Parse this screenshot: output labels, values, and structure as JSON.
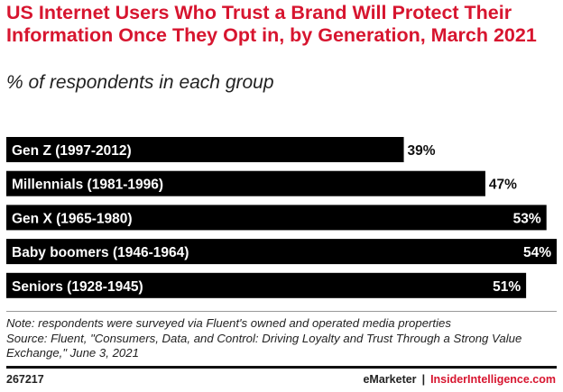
{
  "chart_data": {
    "type": "bar",
    "orientation": "horizontal",
    "title": "US Internet Users Who Trust a Brand Will Protect Their Information Once They Opt in, by Generation, March 2021",
    "subtitle": "% of respondents in each group",
    "categories": [
      "Gen Z (1997-2012)",
      "Millennials (1981-1996)",
      "Gen X (1965-1980)",
      "Baby boomers (1946-1964)",
      "Seniors (1928-1945)"
    ],
    "values": [
      39,
      47,
      53,
      54,
      51
    ],
    "value_labels": [
      "39%",
      "47%",
      "53%",
      "54%",
      "51%"
    ],
    "xlim": [
      0,
      54
    ],
    "grid": false,
    "bar_color": "#000000",
    "title_color": "#d7152f"
  },
  "footer": {
    "note": "Note: respondents were surveyed via Fluent's owned and operated media properties",
    "source": "Source: Fluent, \"Consumers, Data, and Control: Driving Loyalty and Trust Through a Strong Value Exchange,\" June 3, 2021",
    "chart_id": "267217",
    "brand_left": "eMarketer",
    "separator": "|",
    "brand_right": "InsiderIntelligence.com"
  }
}
